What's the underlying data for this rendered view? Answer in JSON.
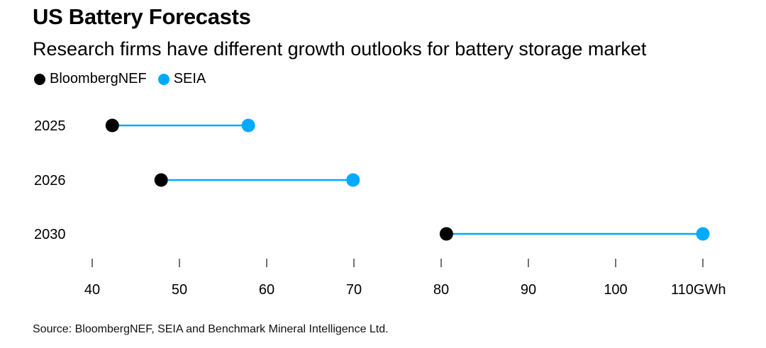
{
  "chart_data": {
    "type": "dumbbell",
    "title": "US Battery Forecasts",
    "subtitle": "Research firms have different growth outlooks for battery storage market",
    "legend": [
      {
        "name": "BloombergNEF",
        "color": "#000000"
      },
      {
        "name": "SEIA",
        "color": "#00aaff"
      }
    ],
    "legend_position": "top-left",
    "categories": [
      "2025",
      "2026",
      "2030"
    ],
    "series": [
      {
        "name": "BloombergNEF",
        "values": [
          42.3,
          47.9,
          80.6
        ]
      },
      {
        "name": "SEIA",
        "values": [
          57.9,
          69.9,
          110
        ]
      }
    ],
    "connector_color": "#00aaff",
    "xlim": [
      40,
      110
    ],
    "xticks": [
      40,
      50,
      60,
      70,
      80,
      90,
      100,
      110
    ],
    "xtick_labels": [
      "40",
      "50",
      "60",
      "70",
      "80",
      "90",
      "100",
      "110GWh"
    ],
    "xlabel": "",
    "ylabel": "",
    "grid": false,
    "source": "Source: BloombergNEF, SEIA and Benchmark Mineral Intelligence Ltd."
  }
}
